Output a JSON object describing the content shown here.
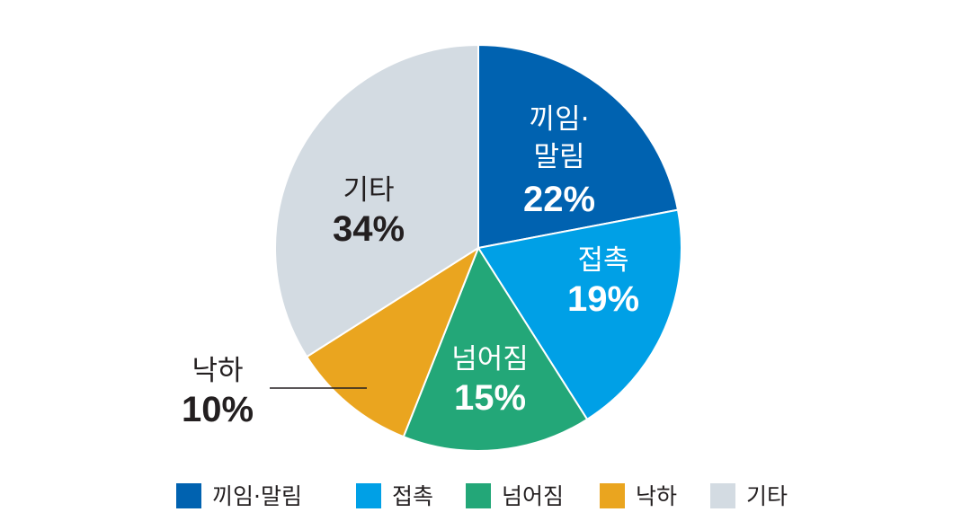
{
  "chart_data": {
    "type": "pie",
    "title": "",
    "start": "12 o'clock",
    "direction": "clockwise",
    "slices": [
      {
        "label": "끼임·말림",
        "label_lines": [
          "끼임·",
          "말림"
        ],
        "value": 22,
        "value_text": "22%",
        "color": "#0062b0",
        "text_color": "#ffffff"
      },
      {
        "label": "접촉",
        "label_lines": [
          "접촉"
        ],
        "value": 19,
        "value_text": "19%",
        "color": "#00a0e6",
        "text_color": "#ffffff"
      },
      {
        "label": "넘어짐",
        "label_lines": [
          "넘어짐"
        ],
        "value": 15,
        "value_text": "15%",
        "color": "#23a778",
        "text_color": "#ffffff"
      },
      {
        "label": "낙하",
        "label_lines": [
          "낙하"
        ],
        "value": 10,
        "value_text": "10%",
        "color": "#eaa51f",
        "text_color": "#231f20",
        "label_outside": true
      },
      {
        "label": "기타",
        "label_lines": [
          "기타"
        ],
        "value": 34,
        "value_text": "34%",
        "color": "#d3dbe2",
        "text_color": "#231f20"
      }
    ],
    "legend": {
      "position": "bottom",
      "items": [
        "끼임·말림",
        "접촉",
        "넘어짐",
        "낙하",
        "기타"
      ]
    }
  }
}
